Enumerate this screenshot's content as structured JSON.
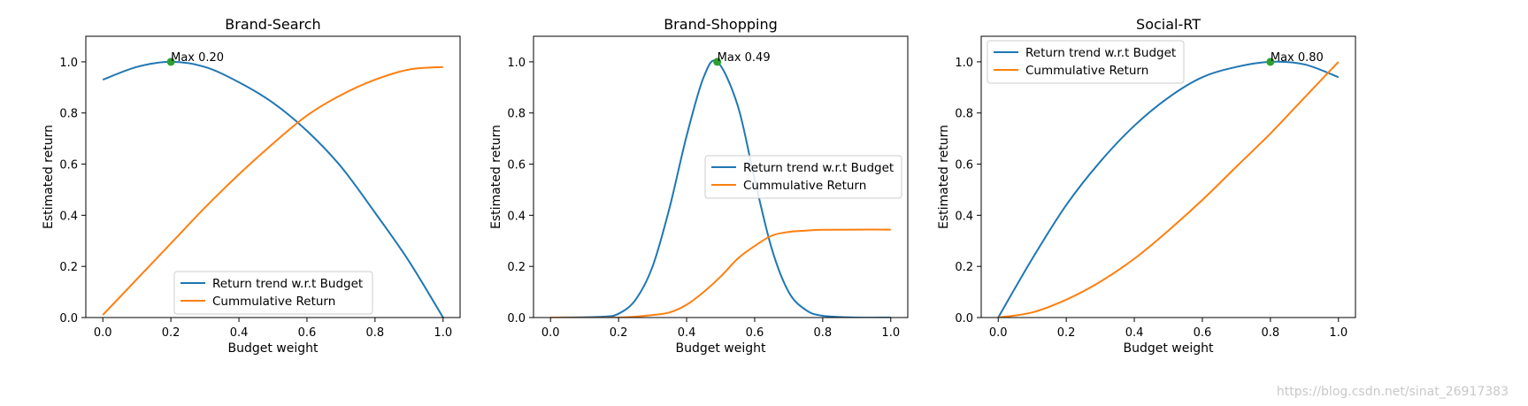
{
  "watermark": "https://blog.csdn.net/sinat_26917383",
  "colors": {
    "trend": "#1f77b4",
    "cumulative": "#ff7f0e",
    "max_marker": "#2ca02c",
    "axis": "#000000"
  },
  "chart_data": [
    {
      "type": "line",
      "title": "Brand-Search",
      "xlabel": "Budget weight",
      "ylabel": "Estimated return",
      "xlim": [
        -0.05,
        1.05
      ],
      "ylim": [
        0.0,
        1.1
      ],
      "xticks": [
        "0.0",
        "0.2",
        "0.4",
        "0.6",
        "0.8",
        "1.0"
      ],
      "yticks": [
        "0.0",
        "0.2",
        "0.4",
        "0.6",
        "0.8",
        "1.0"
      ],
      "legend_position": "lower-center",
      "max_point": {
        "x": 0.2,
        "y": 1.0,
        "label": "Max 0.20"
      },
      "series": [
        {
          "name": "Return trend w.r.t Budget",
          "x": [
            0.0,
            0.1,
            0.2,
            0.3,
            0.4,
            0.5,
            0.6,
            0.7,
            0.8,
            0.9,
            1.0
          ],
          "values": [
            0.93,
            0.98,
            1.0,
            0.98,
            0.92,
            0.84,
            0.73,
            0.59,
            0.41,
            0.22,
            0.0
          ]
        },
        {
          "name": "Cummulative Return",
          "x": [
            0.0,
            0.1,
            0.2,
            0.3,
            0.4,
            0.5,
            0.6,
            0.7,
            0.8,
            0.9,
            1.0
          ],
          "values": [
            0.01,
            0.15,
            0.29,
            0.43,
            0.56,
            0.68,
            0.79,
            0.87,
            0.93,
            0.97,
            0.98
          ]
        }
      ]
    },
    {
      "type": "line",
      "title": "Brand-Shopping",
      "xlabel": "Budget weight",
      "ylabel": "Estimated return",
      "xlim": [
        -0.05,
        1.05
      ],
      "ylim": [
        0.0,
        1.1
      ],
      "xticks": [
        "0.0",
        "0.2",
        "0.4",
        "0.6",
        "0.8",
        "1.0"
      ],
      "yticks": [
        "0.0",
        "0.2",
        "0.4",
        "0.6",
        "0.8",
        "1.0"
      ],
      "legend_position": "center-right",
      "max_point": {
        "x": 0.49,
        "y": 1.0,
        "label": "Max 0.49"
      },
      "series": [
        {
          "name": "Return trend w.r.t Budget",
          "x": [
            0.0,
            0.15,
            0.2,
            0.25,
            0.3,
            0.35,
            0.4,
            0.45,
            0.49,
            0.55,
            0.6,
            0.65,
            0.7,
            0.75,
            0.8,
            0.9,
            1.0
          ],
          "values": [
            0.0,
            0.003,
            0.015,
            0.07,
            0.2,
            0.43,
            0.71,
            0.94,
            1.0,
            0.83,
            0.54,
            0.27,
            0.1,
            0.03,
            0.007,
            0.0,
            0.0
          ]
        },
        {
          "name": "Cummulative Return",
          "x": [
            0.0,
            0.2,
            0.3,
            0.35,
            0.4,
            0.45,
            0.5,
            0.55,
            0.6,
            0.65,
            0.7,
            0.75,
            0.8,
            0.9,
            1.0
          ],
          "values": [
            0.0,
            0.0,
            0.01,
            0.02,
            0.05,
            0.1,
            0.16,
            0.23,
            0.28,
            0.32,
            0.335,
            0.34,
            0.343,
            0.344,
            0.344
          ]
        }
      ]
    },
    {
      "type": "line",
      "title": "Social-RT",
      "xlabel": "Budget weight",
      "ylabel": "Estimated return",
      "xlim": [
        -0.05,
        1.05
      ],
      "ylim": [
        0.0,
        1.1
      ],
      "xticks": [
        "0.0",
        "0.2",
        "0.4",
        "0.6",
        "0.8",
        "1.0"
      ],
      "yticks": [
        "0.0",
        "0.2",
        "0.4",
        "0.6",
        "0.8",
        "1.0"
      ],
      "legend_position": "top-left",
      "max_point": {
        "x": 0.8,
        "y": 1.0,
        "label": "Max 0.80"
      },
      "series": [
        {
          "name": "Return trend w.r.t Budget",
          "x": [
            0.0,
            0.1,
            0.2,
            0.3,
            0.4,
            0.5,
            0.6,
            0.7,
            0.8,
            0.9,
            1.0
          ],
          "values": [
            0.0,
            0.23,
            0.44,
            0.61,
            0.75,
            0.86,
            0.94,
            0.98,
            1.0,
            0.99,
            0.94
          ]
        },
        {
          "name": "Cummulative Return",
          "x": [
            0.0,
            0.1,
            0.2,
            0.3,
            0.4,
            0.5,
            0.6,
            0.7,
            0.8,
            0.9,
            1.0
          ],
          "values": [
            0.0,
            0.02,
            0.07,
            0.14,
            0.23,
            0.34,
            0.46,
            0.59,
            0.72,
            0.86,
            1.0
          ]
        }
      ]
    }
  ]
}
